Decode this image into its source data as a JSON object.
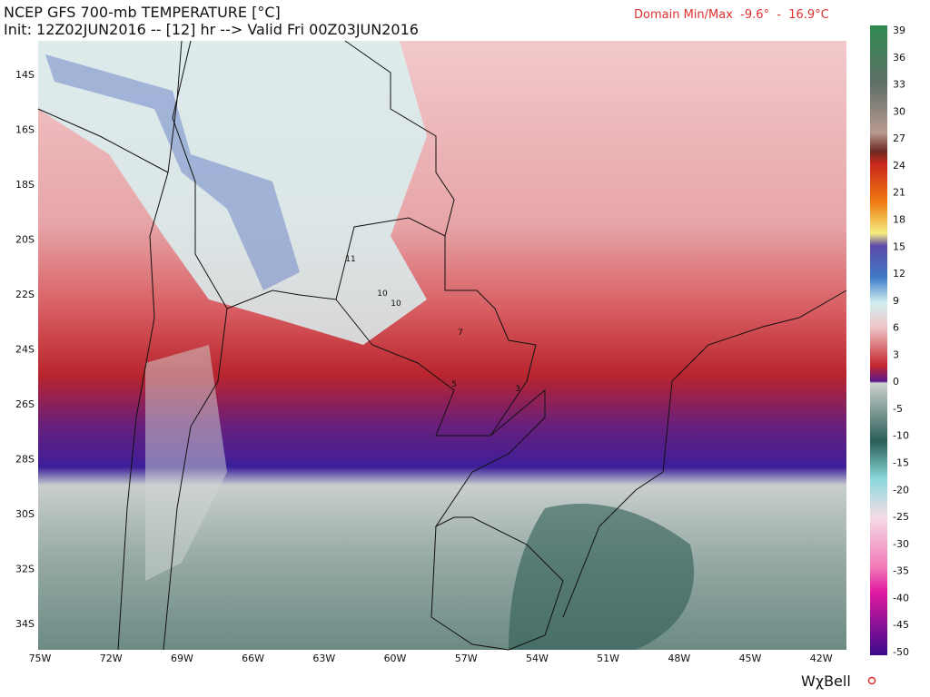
{
  "header": {
    "title": "NCEP GFS 700-mb TEMPERATURE [°C]",
    "init": "Init: 12Z02JUN2016 -- [12] hr --> Valid Fri 00Z03JUN2016",
    "domain": "Domain Min/Max  -9.6°  -  16.9°C"
  },
  "map": {
    "lat_labels": [
      "14S",
      "16S",
      "18S",
      "20S",
      "22S",
      "24S",
      "26S",
      "28S",
      "30S",
      "32S",
      "34S"
    ],
    "lon_labels": [
      "75W",
      "72W",
      "69W",
      "66W",
      "63W",
      "60W",
      "57W",
      "54W",
      "51W",
      "48W",
      "45W",
      "42W"
    ],
    "contour_labels": [
      "11",
      "10",
      "10",
      "7",
      "5",
      "3"
    ]
  },
  "colorbar": {
    "labels": [
      "39",
      "36",
      "33",
      "30",
      "27",
      "24",
      "21",
      "18",
      "15",
      "12",
      "9",
      "6",
      "3",
      "0",
      "-5",
      "-10",
      "-15",
      "-20",
      "-25",
      "-30",
      "-35",
      "-40",
      "-45",
      "-50"
    ]
  },
  "footer": {
    "brand": "WχBell"
  }
}
